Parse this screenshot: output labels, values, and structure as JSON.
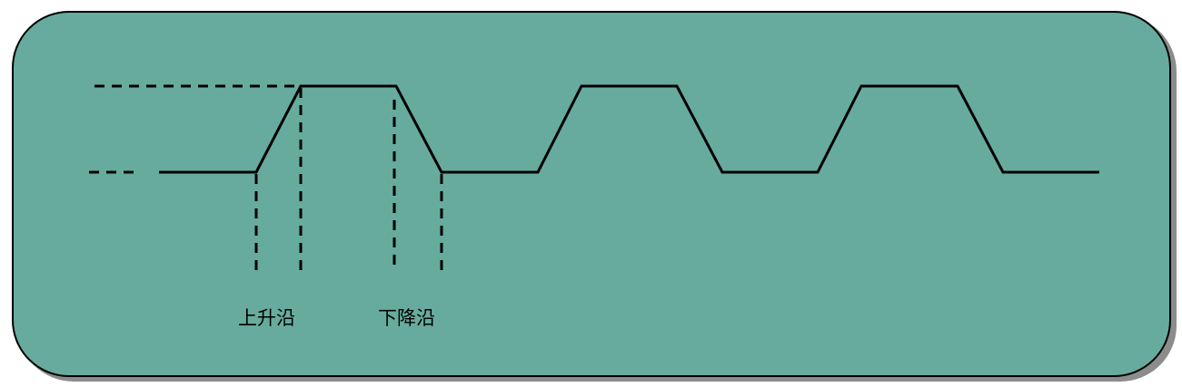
{
  "colors": {
    "panel_fill": "#67ab9f",
    "panel_shadow": "#8c8c8c",
    "panel_border": "#000000",
    "line": "#000000"
  },
  "labels": {
    "rising_edge": "上升沿",
    "falling_edge": "下降沿"
  }
}
